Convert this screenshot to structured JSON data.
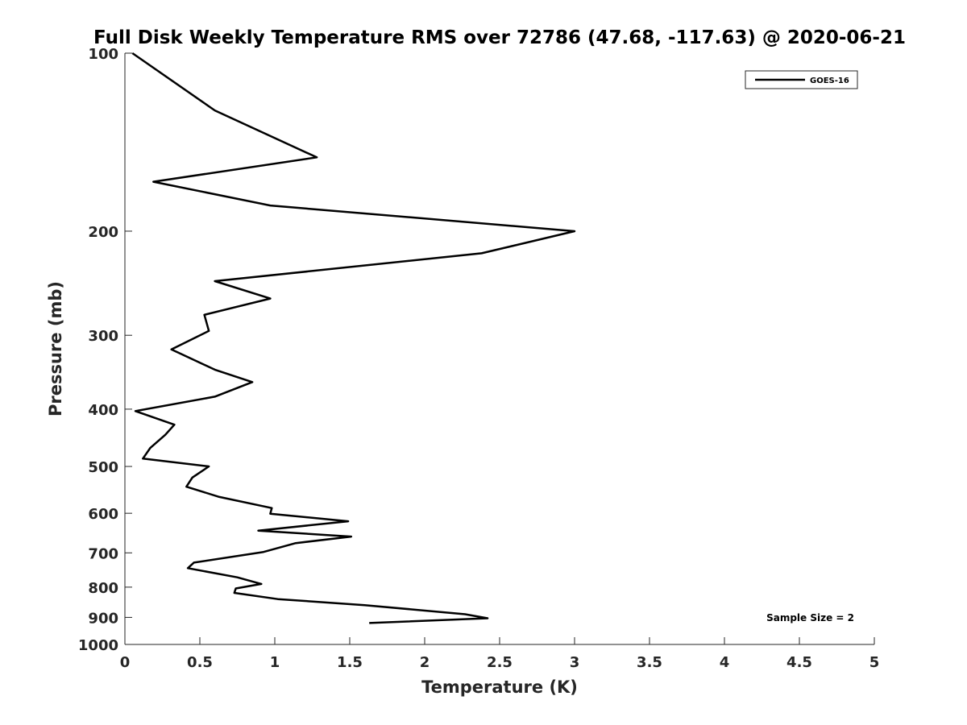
{
  "chart_data": {
    "type": "line",
    "title": "Full Disk Weekly Temperature RMS over 72786 (47.68, -117.63) @ 2020-06-21",
    "xlabel": "Temperature (K)",
    "ylabel": "Pressure (mb)",
    "xlim": [
      0,
      5
    ],
    "ylim": [
      100,
      1000
    ],
    "y_scale": "log",
    "y_reversed": true,
    "xticks": [
      0,
      0.5,
      1,
      1.5,
      2,
      2.5,
      3,
      3.5,
      4,
      4.5,
      5
    ],
    "xtick_labels": [
      "0",
      "0.5",
      "1",
      "1.5",
      "2",
      "2.5",
      "3",
      "3.5",
      "4",
      "4.5",
      "5"
    ],
    "yticks": [
      100,
      200,
      300,
      400,
      500,
      600,
      700,
      800,
      900,
      1000
    ],
    "ytick_labels": [
      "100",
      "200",
      "300",
      "400",
      "500",
      "600",
      "700",
      "800",
      "900",
      "1000"
    ],
    "grid": false,
    "legend_position": "top-right",
    "series": [
      {
        "name": "GOES-16",
        "color": "#000000",
        "points": [
          [
            0.05,
            100
          ],
          [
            0.6,
            125
          ],
          [
            1.28,
            150
          ],
          [
            0.19,
            165
          ],
          [
            0.97,
            181
          ],
          [
            3.0,
            200
          ],
          [
            2.38,
            218
          ],
          [
            0.6,
            243
          ],
          [
            0.97,
            260
          ],
          [
            0.53,
            277
          ],
          [
            0.56,
            295
          ],
          [
            0.31,
            317
          ],
          [
            0.6,
            343
          ],
          [
            0.85,
            360
          ],
          [
            0.6,
            381
          ],
          [
            0.07,
            403
          ],
          [
            0.33,
            425
          ],
          [
            0.27,
            442
          ],
          [
            0.17,
            465
          ],
          [
            0.12,
            485
          ],
          [
            0.56,
            500
          ],
          [
            0.45,
            522
          ],
          [
            0.41,
            541
          ],
          [
            0.63,
            563
          ],
          [
            0.98,
            588
          ],
          [
            0.97,
            601
          ],
          [
            1.49,
            619
          ],
          [
            0.89,
            642
          ],
          [
            1.51,
            657
          ],
          [
            1.14,
            674
          ],
          [
            0.92,
            698
          ],
          [
            0.46,
            727
          ],
          [
            0.42,
            743
          ],
          [
            0.75,
            770
          ],
          [
            0.91,
            790
          ],
          [
            0.74,
            804
          ],
          [
            0.73,
            818
          ],
          [
            1.02,
            838
          ],
          [
            1.6,
            858
          ],
          [
            2.27,
            889
          ],
          [
            2.42,
            903
          ],
          [
            1.63,
            920
          ]
        ]
      }
    ],
    "annotation": "Sample Size = 2"
  }
}
